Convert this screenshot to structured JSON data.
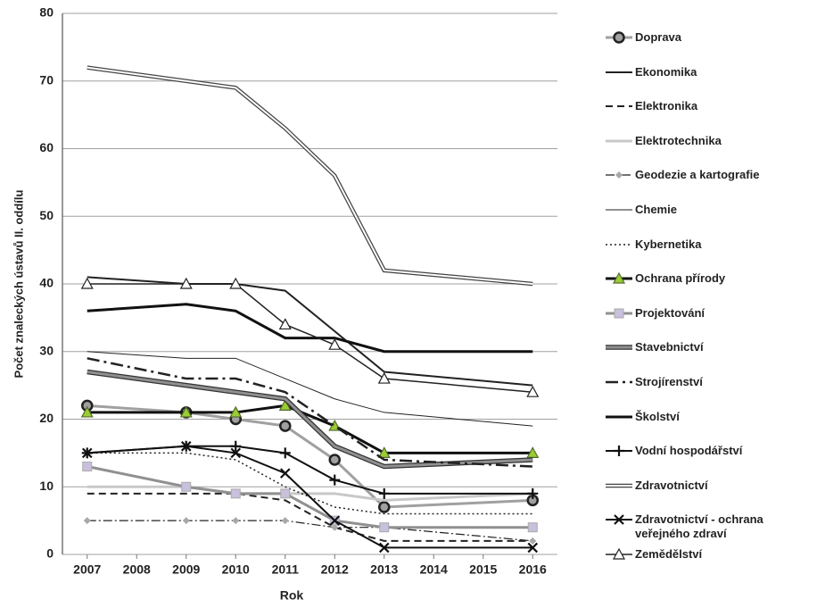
{
  "chart_data": {
    "type": "line",
    "y_label": "Počet znaleckých ústavů II. oddílu",
    "x_label": "Rok",
    "x": [
      2007,
      2009,
      2010,
      2011,
      2012,
      2013,
      2016
    ],
    "xlim": [
      2006.5,
      2016.5
    ],
    "xticks": [
      2007,
      2008,
      2009,
      2010,
      2011,
      2012,
      2013,
      2014,
      2015,
      2016
    ],
    "ylim": [
      0,
      80
    ],
    "yticks": [
      0,
      10,
      20,
      30,
      40,
      50,
      60,
      70,
      80
    ],
    "grid": true,
    "legend": "right",
    "series": [
      {
        "name": "Doprava",
        "color": "#a0a0a0",
        "width": 3,
        "marker": "circle",
        "marker_color": "#a0a0a0",
        "values": [
          22,
          21,
          20,
          19,
          14,
          7,
          8
        ]
      },
      {
        "name": "Ekonomika",
        "color": "#222222",
        "width": 2,
        "values": [
          41,
          40,
          40,
          39,
          33,
          27,
          25
        ]
      },
      {
        "name": "Elektronika",
        "color": "#222222",
        "width": 2,
        "dash": "8,5",
        "values": [
          9,
          9,
          9,
          8,
          4,
          2,
          2
        ]
      },
      {
        "name": "Elektrotechnika",
        "color": "#c8c8c8",
        "width": 3,
        "values": [
          10,
          10,
          9,
          9,
          9,
          8,
          9
        ]
      },
      {
        "name": "Geodezie a kartografie",
        "color": "#222222",
        "width": 1.2,
        "dash": "10,3,2,3",
        "marker": "diamond",
        "marker_color": "#a8a8a8",
        "values": [
          5,
          5,
          5,
          5,
          4,
          4,
          2
        ]
      },
      {
        "name": "Chemie",
        "color": "#222222",
        "width": 1,
        "values": [
          30,
          29,
          29,
          26,
          23,
          21,
          19
        ]
      },
      {
        "name": "Kybernetika",
        "color": "#222222",
        "width": 1.5,
        "dash": "2,3",
        "values": [
          15,
          15,
          14,
          10,
          7,
          6,
          6
        ]
      },
      {
        "name": "Ochrana přírody",
        "color": "#111111",
        "width": 3,
        "marker": "triangle",
        "marker_color": "#9acd32",
        "values": [
          21,
          21,
          21,
          22,
          19,
          15,
          15
        ]
      },
      {
        "name": "Projektování",
        "color": "#909090",
        "width": 3,
        "marker": "square",
        "marker_color": "#c8c0dc",
        "values": [
          13,
          10,
          9,
          9,
          5,
          4,
          4
        ]
      },
      {
        "name": "Stavebnictví",
        "color": "#909090",
        "width": 3,
        "outline": "#333333",
        "values": [
          27,
          25,
          24,
          23,
          16,
          13,
          14
        ]
      },
      {
        "name": "Strojírenství",
        "color": "#222222",
        "width": 2.5,
        "dash": "14,5,3,5",
        "values": [
          29,
          26,
          26,
          24,
          19,
          14,
          13
        ]
      },
      {
        "name": "Školství",
        "color": "#111111",
        "width": 3,
        "values": [
          36,
          37,
          36,
          32,
          32,
          30,
          30
        ]
      },
      {
        "name": "Vodní hospodářství",
        "color": "#111111",
        "width": 2,
        "marker": "plus",
        "marker_color": "#111111",
        "values": [
          15,
          16,
          16,
          15,
          11,
          9,
          9
        ]
      },
      {
        "name": "Zdravotnictví",
        "color": "#ffffff",
        "width": 2,
        "outline": "#444444",
        "values": [
          72,
          70,
          69,
          63,
          56,
          42,
          40
        ]
      },
      {
        "name": "Zdravotnictví - ochrana veřejného zdraví",
        "color": "#111111",
        "width": 2,
        "marker": "x",
        "marker_color": "#111111",
        "values": [
          15,
          16,
          15,
          12,
          5,
          1,
          1
        ]
      },
      {
        "name": "Zemědělství",
        "color": "#222222",
        "width": 1.5,
        "marker": "triangle",
        "marker_color": "#ffffff",
        "values": [
          40,
          40,
          40,
          34,
          31,
          26,
          24
        ]
      }
    ]
  }
}
